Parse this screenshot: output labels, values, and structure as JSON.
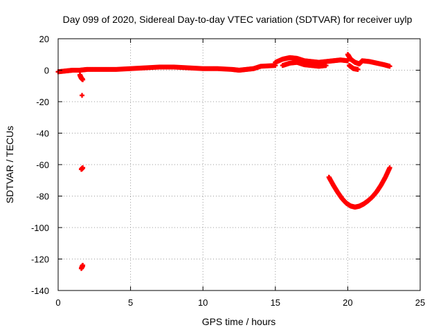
{
  "chart_data": {
    "type": "scatter",
    "title": "Day 099 of 2020, Sidereal Day-to-day VTEC variation (SDTVAR) for receiver uylp",
    "xlabel": "GPS time / hours",
    "ylabel": "SDTVAR / TECUs",
    "xlim": [
      0,
      25
    ],
    "ylim": [
      -140,
      20
    ],
    "x_ticks": [
      0,
      5,
      10,
      15,
      20,
      25
    ],
    "y_ticks": [
      20,
      0,
      -20,
      -40,
      -60,
      -80,
      -100,
      -120,
      -140
    ],
    "x_tick_labels": [
      "0",
      "5",
      "10",
      "15",
      "20",
      "25"
    ],
    "y_tick_labels": [
      "20",
      "0",
      "-20",
      "-40",
      "-60",
      "-80",
      "-100",
      "-120",
      "-140"
    ],
    "grid": true,
    "series": [
      {
        "name": "SDTVAR",
        "color": "#ff0000",
        "segments": [
          {
            "x": [
              0.0,
              0.5,
              1.0,
              1.5,
              2.0,
              3.0,
              4.0,
              5.0,
              6.0,
              7.0,
              8.0,
              9.0,
              10.0,
              11.0,
              12.0,
              12.5,
              13.0,
              13.5,
              14.0,
              15.0
            ],
            "y": [
              -1,
              -0.5,
              0,
              0,
              0.5,
              0.5,
              0.5,
              1,
              1.5,
              2,
              2,
              1.5,
              1,
              1,
              0.5,
              0,
              0.5,
              1,
              2.5,
              3
            ]
          },
          {
            "x": [
              15.0,
              15.5,
              16.0,
              16.5,
              17.0,
              17.5,
              18.0,
              18.5,
              19.0,
              19.5,
              20.0
            ],
            "y": [
              5,
              7,
              8,
              7.5,
              6,
              5.5,
              5,
              5.5,
              6,
              6.5,
              6
            ]
          },
          {
            "x": [
              15.5,
              16.0,
              16.5,
              17.0,
              17.5,
              18.0,
              18.5
            ],
            "y": [
              3,
              4.5,
              5,
              3.5,
              3,
              2.5,
              3
            ]
          },
          {
            "x": [
              20.0,
              20.2,
              20.5,
              20.8,
              21.0,
              21.5,
              22.0,
              22.5,
              22.9
            ],
            "y": [
              10,
              7,
              5,
              4,
              6,
              5.5,
              4.5,
              3.5,
              2.5
            ]
          },
          {
            "x": [
              20.1,
              20.4,
              20.7
            ],
            "y": [
              3,
              1,
              0.5
            ]
          },
          {
            "x": [
              1.5,
              1.6,
              1.7
            ],
            "y": [
              -3,
              -5,
              -6
            ]
          },
          {
            "x": [
              1.65
            ],
            "y": [
              -16
            ]
          },
          {
            "x": [
              1.6,
              1.7
            ],
            "y": [
              -63,
              -62
            ]
          },
          {
            "x": [
              1.6,
              1.7,
              1.65
            ],
            "y": [
              -126,
              -124,
              -125
            ]
          },
          {
            "x": [
              18.7,
              19.0,
              19.3,
              19.6,
              19.9,
              20.2,
              20.5,
              20.8,
              21.1,
              21.4,
              21.7,
              22.0,
              22.3,
              22.6,
              22.9
            ],
            "y": [
              -68,
              -73,
              -77.5,
              -81.5,
              -84.5,
              -86.3,
              -87,
              -86.4,
              -85,
              -83,
              -80.5,
              -77.2,
              -73,
              -68,
              -62
            ]
          }
        ]
      }
    ]
  }
}
